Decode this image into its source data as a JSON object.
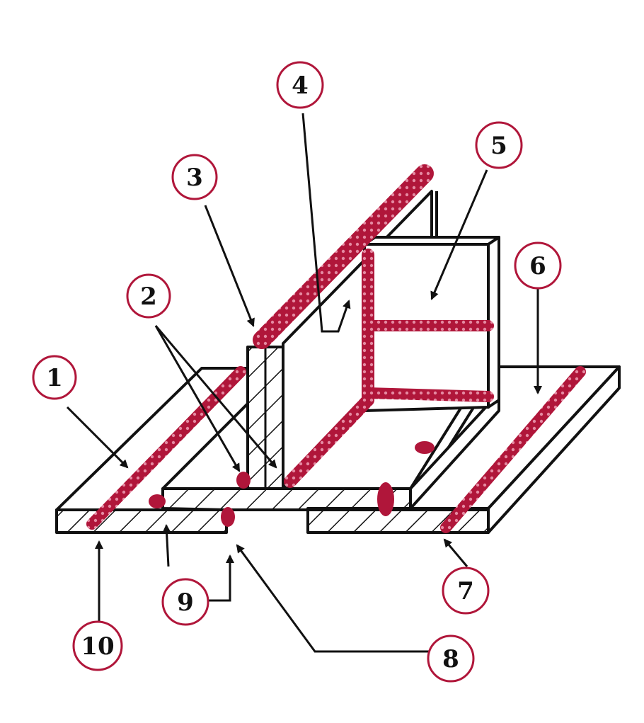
{
  "colors": {
    "weld": "#b0163a",
    "ink": "#111111",
    "background": "#ffffff"
  },
  "callouts": [
    {
      "id": "1",
      "text": "1"
    },
    {
      "id": "2",
      "text": "2"
    },
    {
      "id": "3",
      "text": "3"
    },
    {
      "id": "4",
      "text": "4"
    },
    {
      "id": "5",
      "text": "5"
    },
    {
      "id": "6",
      "text": "6"
    },
    {
      "id": "7",
      "text": "7"
    },
    {
      "id": "8",
      "text": "8"
    },
    {
      "id": "9",
      "text": "9"
    },
    {
      "id": "10",
      "text": "10"
    }
  ]
}
